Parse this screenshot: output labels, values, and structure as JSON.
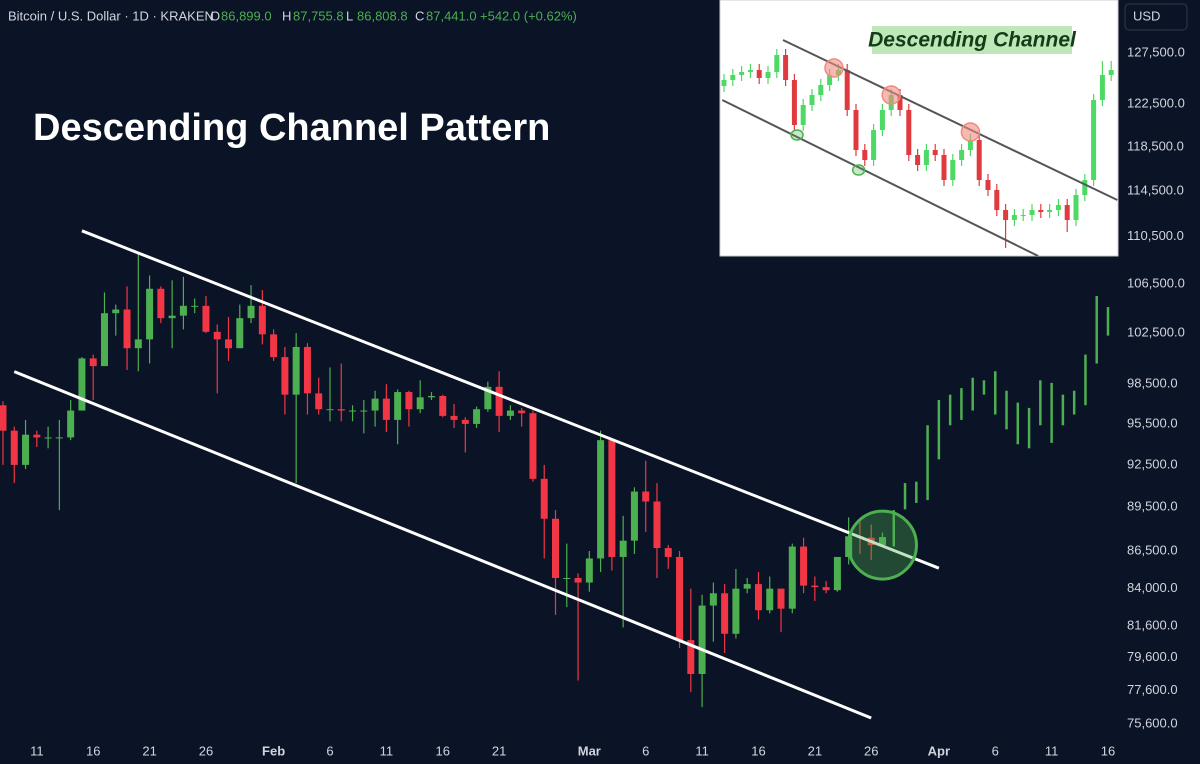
{
  "header": {
    "symbol": "Bitcoin / U.S. Dollar · 1D · KRAKEN",
    "ohlc": [
      {
        "label": "O",
        "value": "86,899.0"
      },
      {
        "label": "H",
        "value": "87,755.8"
      },
      {
        "label": "L",
        "value": "86,808.8"
      },
      {
        "label": "C",
        "value": "87,441.0"
      }
    ],
    "change": "+542.0 (+0.62%)"
  },
  "chart_data": [
    {
      "type": "candlestick",
      "title": "Descending Channel Pattern",
      "currency": "USD",
      "x": [
        "01-08",
        "01-09",
        "01-10",
        "01-11",
        "01-12",
        "01-13",
        "01-14",
        "01-15",
        "01-16",
        "01-17",
        "01-18",
        "01-19",
        "01-20",
        "01-21",
        "01-22",
        "01-23",
        "01-24",
        "01-25",
        "01-26",
        "01-27",
        "01-28",
        "01-29",
        "01-30",
        "01-31",
        "02-01",
        "02-02",
        "02-03",
        "02-04",
        "02-05",
        "02-06",
        "02-07",
        "02-08",
        "02-09",
        "02-10",
        "02-11",
        "02-12",
        "02-13",
        "02-14",
        "02-15",
        "02-16",
        "02-17",
        "02-18",
        "02-19",
        "02-20",
        "02-21",
        "02-22",
        "02-23",
        "02-24",
        "02-25",
        "02-26",
        "02-27",
        "02-28",
        "03-01",
        "03-02",
        "03-03",
        "03-04",
        "03-05",
        "03-06",
        "03-07",
        "03-08",
        "03-09",
        "03-10",
        "03-11",
        "03-12",
        "03-13",
        "03-14",
        "03-15",
        "03-16",
        "03-17",
        "03-18",
        "03-19",
        "03-20",
        "03-21",
        "03-22",
        "03-23",
        "03-24",
        "03-25",
        "03-26",
        "03-27"
      ],
      "open": [
        96900,
        95000,
        92500,
        94700,
        94500,
        94500,
        94500,
        96500,
        100500,
        99900,
        104100,
        104400,
        101300,
        102000,
        106100,
        103700,
        103900,
        104700,
        104700,
        102600,
        102000,
        101300,
        103700,
        104700,
        102400,
        100600,
        97700,
        101400,
        97800,
        96600,
        96600,
        96500,
        96500,
        96500,
        97400,
        95800,
        97900,
        96600,
        97500,
        97600,
        96100,
        95800,
        95500,
        96600,
        98300,
        96100,
        96500,
        96300,
        91500,
        88700,
        84700,
        84700,
        84400,
        86000,
        94300,
        86100,
        87200,
        90600,
        89900,
        86700,
        86100,
        80700,
        78600,
        82900,
        83700,
        81100,
        84000,
        84300,
        82600,
        84000,
        82700,
        86800,
        84200,
        84100,
        83900,
        86100,
        87500,
        87400,
        86899
      ],
      "high": [
        97200,
        95300,
        95800,
        95000,
        95300,
        95800,
        97300,
        100600,
        100800,
        105800,
        104800,
        106300,
        109000,
        107200,
        106300,
        106800,
        107100,
        105300,
        105500,
        103200,
        103800,
        104800,
        106400,
        106000,
        102800,
        101400,
        102500,
        101700,
        99000,
        99800,
        100100,
        96900,
        97300,
        98000,
        98500,
        98100,
        98000,
        98800,
        97900,
        97700,
        97000,
        96000,
        96800,
        98700,
        99500,
        96900,
        96700,
        96500,
        92500,
        89300,
        87000,
        85000,
        86500,
        95000,
        94400,
        88900,
        90900,
        92800,
        91200,
        86900,
        86500,
        84000,
        83600,
        84400,
        84300,
        85300,
        84700,
        85100,
        84800,
        84000,
        87000,
        87400,
        84800,
        84500,
        86100,
        88800,
        88500,
        88300,
        87755.8
      ],
      "low": [
        92500,
        91200,
        92200,
        93800,
        93700,
        89300,
        94300,
        96500,
        97300,
        99900,
        102300,
        99600,
        99500,
        100100,
        103300,
        101300,
        102800,
        104100,
        102500,
        97800,
        100300,
        101300,
        103300,
        101600,
        100300,
        96200,
        91200,
        96200,
        96200,
        95700,
        95700,
        95700,
        94800,
        95300,
        94900,
        94000,
        95300,
        96300,
        97300,
        96000,
        95200,
        93400,
        95200,
        96400,
        94900,
        95800,
        95300,
        91300,
        86000,
        82300,
        82800,
        78200,
        83800,
        85100,
        85200,
        81500,
        86300,
        87800,
        84700,
        85300,
        80200,
        77500,
        76600,
        80600,
        79900,
        80800,
        83700,
        82000,
        82400,
        81200,
        82400,
        83700,
        83200,
        83700,
        83800,
        85600,
        86300,
        85900,
        86808.8
      ],
      "close": [
        95000,
        92500,
        94700,
        94500,
        94500,
        94500,
        96500,
        100500,
        99900,
        104100,
        104400,
        101300,
        102000,
        106100,
        103700,
        103900,
        104700,
        104700,
        102600,
        102000,
        101300,
        103700,
        104700,
        102400,
        100600,
        97700,
        101400,
        97800,
        96600,
        96600,
        96500,
        96500,
        96500,
        97400,
        95800,
        97900,
        96600,
        97500,
        97600,
        96100,
        95800,
        95500,
        96600,
        98300,
        96100,
        96500,
        96300,
        91500,
        88700,
        84700,
        84700,
        84400,
        86000,
        94300,
        86100,
        87200,
        90600,
        89900,
        86700,
        86100,
        80700,
        78600,
        82900,
        83700,
        81100,
        84000,
        84300,
        82600,
        84000,
        82700,
        86800,
        84200,
        84100,
        83900,
        86100,
        87500,
        87400,
        86900,
        87441
      ],
      "up_color": "#4caf50",
      "down_color": "#f23645",
      "projection": {
        "x": [
          "03-28",
          "03-29",
          "03-30",
          "03-31",
          "04-01",
          "04-02",
          "04-03",
          "04-04",
          "04-05",
          "04-06",
          "04-07",
          "04-08",
          "04-09",
          "04-10",
          "04-11",
          "04-12",
          "04-13",
          "04-14",
          "04-15",
          "04-16"
        ],
        "high": [
          89300,
          91200,
          91300,
          95400,
          97300,
          97700,
          98200,
          99000,
          98800,
          99500,
          98000,
          97100,
          96700,
          98800,
          98600,
          97700,
          98000,
          100800,
          105500,
          104600
        ],
        "low": [
          86800,
          89350,
          89800,
          90000,
          92900,
          95400,
          95800,
          96500,
          97700,
          96200,
          95100,
          94000,
          93700,
          95400,
          94100,
          95400,
          96200,
          96900,
          100100,
          102300
        ],
        "color": "#4caf50"
      },
      "channel": [
        {
          "from": [
            "01-15",
            111000
          ],
          "to": [
            "04-01",
            85350
          ]
        },
        {
          "from": [
            "01-09",
            99470
          ],
          "to": [
            "03-26",
            75950
          ]
        }
      ],
      "channel_color": "#ffffff",
      "highlight": {
        "x": "03-27",
        "y": 86900,
        "color": "#4caf50"
      },
      "xlim": [
        "01-08",
        "04-16"
      ],
      "xticks": [
        {
          "value": "01-11",
          "label": "11"
        },
        {
          "value": "01-16",
          "label": "16"
        },
        {
          "value": "01-21",
          "label": "21"
        },
        {
          "value": "01-26",
          "label": "26"
        },
        {
          "value": "02-01",
          "label": "Feb"
        },
        {
          "value": "02-06",
          "label": "6"
        },
        {
          "value": "02-11",
          "label": "11"
        },
        {
          "value": "02-16",
          "label": "16"
        },
        {
          "value": "02-21",
          "label": "21"
        },
        {
          "value": "03-01",
          "label": "Mar"
        },
        {
          "value": "03-06",
          "label": "6"
        },
        {
          "value": "03-11",
          "label": "11"
        },
        {
          "value": "03-16",
          "label": "16"
        },
        {
          "value": "03-21",
          "label": "21"
        },
        {
          "value": "03-26",
          "label": "26"
        },
        {
          "value": "04-01",
          "label": "Apr"
        },
        {
          "value": "04-06",
          "label": "6"
        },
        {
          "value": "04-11",
          "label": "11"
        },
        {
          "value": "04-16",
          "label": "16"
        }
      ],
      "ylim": [
        74660,
        132860
      ],
      "log_scale": true,
      "grid": false,
      "yticks": [
        {
          "value": 127500,
          "label": "127,500.0"
        },
        {
          "value": 122500,
          "label": "122,500.0"
        },
        {
          "value": 118500,
          "label": "118,500.0"
        },
        {
          "value": 114500,
          "label": "114,500.0"
        },
        {
          "value": 110500,
          "label": "110,500.0"
        },
        {
          "value": 106500,
          "label": "106,500.0"
        },
        {
          "value": 102500,
          "label": "102,500.0"
        },
        {
          "value": 98500,
          "label": "98,500.0"
        },
        {
          "value": 95500,
          "label": "95,500.0"
        },
        {
          "value": 92500,
          "label": "92,500.0"
        },
        {
          "value": 89500,
          "label": "89,500.0"
        },
        {
          "value": 86500,
          "label": "86,500.0"
        },
        {
          "value": 84000,
          "label": "84,000.0"
        },
        {
          "value": 81600,
          "label": "81,600.0"
        },
        {
          "value": 79600,
          "label": "79,600.0"
        },
        {
          "value": 77600,
          "label": "77,600.0"
        },
        {
          "value": 75600,
          "label": "75,600.0"
        }
      ]
    },
    {
      "type": "candlestick",
      "title": "Descending Channel",
      "candles": [
        [
          170,
          182,
          164,
          176
        ],
        [
          176,
          187,
          170,
          181
        ],
        [
          181,
          190,
          175,
          184
        ],
        [
          184,
          192,
          178,
          186
        ],
        [
          186,
          192,
          172,
          178
        ],
        [
          178,
          190,
          172,
          184
        ],
        [
          184,
          207,
          178,
          201
        ],
        [
          201,
          207,
          170,
          176
        ],
        [
          176,
          182,
          125,
          131
        ],
        [
          131,
          157,
          125,
          151
        ],
        [
          151,
          167,
          145,
          161
        ],
        [
          161,
          177,
          155,
          171
        ],
        [
          171,
          187,
          165,
          181
        ],
        [
          181,
          192,
          175,
          186
        ],
        [
          186,
          192,
          140,
          146
        ],
        [
          146,
          152,
          100,
          106
        ],
        [
          106,
          112,
          90,
          96
        ],
        [
          96,
          132,
          90,
          126
        ],
        [
          126,
          152,
          120,
          146
        ],
        [
          146,
          167,
          140,
          161
        ],
        [
          161,
          167,
          140,
          146
        ],
        [
          146,
          152,
          95,
          101
        ],
        [
          101,
          107,
          85,
          91
        ],
        [
          91,
          112,
          85,
          106
        ],
        [
          106,
          112,
          95,
          101
        ],
        [
          101,
          107,
          70,
          76
        ],
        [
          76,
          102,
          70,
          96
        ],
        [
          96,
          112,
          90,
          106
        ],
        [
          106,
          122,
          100,
          116
        ],
        [
          116,
          122,
          70,
          76
        ],
        [
          76,
          82,
          60,
          66
        ],
        [
          66,
          72,
          40,
          46
        ],
        [
          46,
          52,
          8,
          36
        ],
        [
          36,
          47,
          30,
          41
        ],
        [
          41,
          47,
          35,
          41
        ],
        [
          41,
          52,
          35,
          46
        ],
        [
          46,
          52,
          38,
          44
        ],
        [
          44,
          52,
          38,
          46
        ],
        [
          46,
          57,
          40,
          51
        ],
        [
          51,
          57,
          24,
          36
        ],
        [
          36,
          67,
          30,
          61
        ],
        [
          61,
          82,
          55,
          76
        ],
        [
          76,
          162,
          70,
          156
        ],
        [
          156,
          195,
          150,
          181
        ],
        [
          181,
          195,
          175,
          186
        ]
      ],
      "up_color": "#4cd964",
      "down_color": "#e0393e",
      "ylim": [
        0,
        256
      ],
      "channel": [
        {
          "from": [
            6.7,
            216
          ],
          "to": [
            44.7,
            56
          ]
        },
        {
          "from": [
            -0.2,
            156
          ],
          "to": [
            35.7,
            0
          ]
        }
      ],
      "channel_color": "#555555",
      "peaks": [
        [
          12.5,
          188
        ],
        [
          19,
          161
        ],
        [
          28,
          124
        ]
      ],
      "peak_color": "#f08a80",
      "troughs": [
        [
          8.3,
          121
        ],
        [
          15.3,
          86
        ]
      ],
      "trough_color": "#4caf50"
    }
  ]
}
